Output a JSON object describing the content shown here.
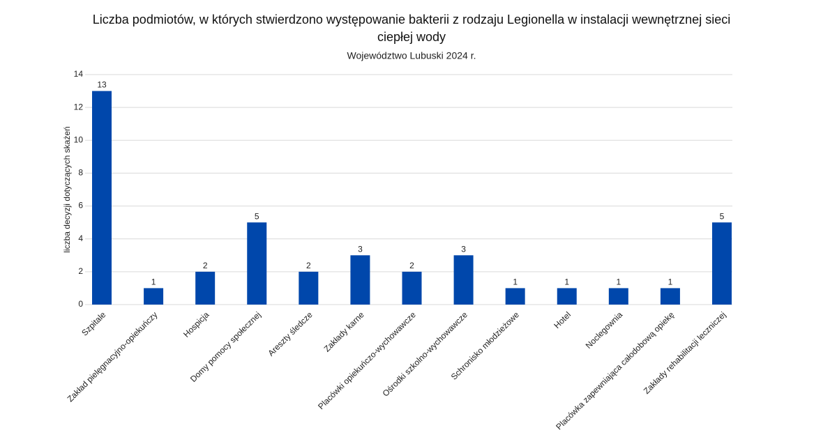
{
  "chart_data": {
    "type": "bar",
    "title": "Liczba podmiotów, w których stwierdzono występowanie bakterii z rodzaju Legionella w instalacji wewnętrznej sieci ciepłej wody",
    "subtitle": "Województwo Lubuski 2024 r.",
    "y_label": "liczba decyzji dotyczących skażeń",
    "categories": [
      "Szpitale",
      "Zakład pielęgnacyjno-opiekuńczy",
      "Hospicja",
      "Domy pomocy społecznej",
      "Areszty śledcze",
      "Zakłady karne",
      "Placówki opiekuńczo-wychowawcze",
      "Ośrodki szkolno-wychowawcze",
      "Schronisko młodzieżowe",
      "Hotel",
      "Noclegownia",
      "Placówka zapewniająca całodobową opiekę",
      "Zakłady rehabilitacji leczniczej"
    ],
    "values": [
      13,
      1,
      2,
      5,
      2,
      3,
      2,
      3,
      1,
      1,
      1,
      1,
      5
    ],
    "color": "#0047ab",
    "ylim": [
      0,
      14
    ],
    "yticks": [
      0,
      2,
      4,
      6,
      8,
      10,
      12,
      14
    ],
    "grid": true
  }
}
